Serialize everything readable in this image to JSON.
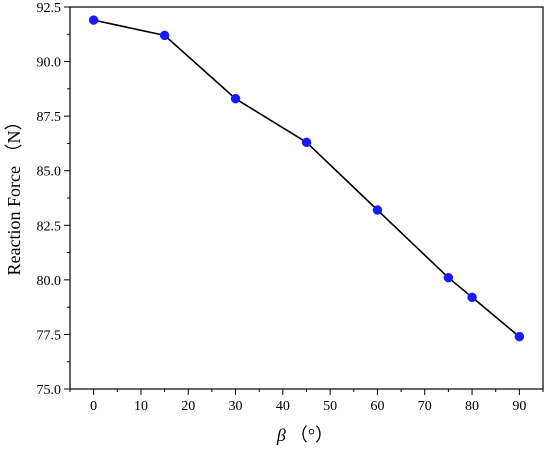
{
  "chart_data": {
    "type": "line",
    "title": "",
    "xlabel_symbol": "β",
    "xlabel_unit": "（°）",
    "ylabel": "Reaction Force （N）",
    "xlim": [
      -5,
      95
    ],
    "ylim": [
      75.0,
      92.5
    ],
    "xticks": [
      0,
      10,
      20,
      30,
      40,
      50,
      60,
      70,
      80,
      90
    ],
    "yticks": [
      75.0,
      77.5,
      80.0,
      82.5,
      85.0,
      87.5,
      90.0,
      92.5
    ],
    "ytick_labels": [
      "75.0",
      "77.5",
      "80.0",
      "82.5",
      "85.0",
      "87.5",
      "90.0",
      "92.5"
    ],
    "grid": false,
    "series": [
      {
        "x": [
          0,
          15,
          30,
          45,
          60,
          75,
          80,
          90
        ],
        "y": [
          91.9,
          91.2,
          88.3,
          86.3,
          83.2,
          80.1,
          79.2,
          77.4
        ],
        "line_color": "#000000",
        "marker_color": "#1a1aff"
      }
    ]
  }
}
